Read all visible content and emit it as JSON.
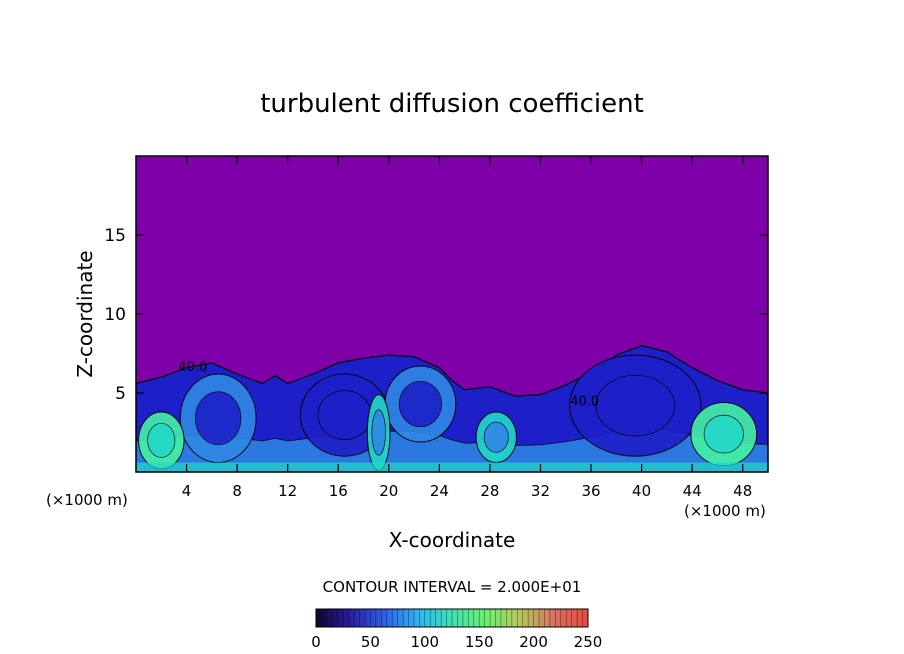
{
  "chart_data": {
    "type": "heatmap",
    "title": "turbulent diffusion coefficient",
    "xlabel": "X-coordinate",
    "ylabel": "Z-coordinate",
    "x_units": "(×1000 m)",
    "y_units": "(×1000 m)",
    "xlim": [
      0,
      50
    ],
    "ylim": [
      0,
      20
    ],
    "x_ticks": [
      4,
      8,
      12,
      16,
      20,
      24,
      28,
      32,
      36,
      40,
      44,
      48
    ],
    "y_ticks": [
      5,
      10,
      15
    ],
    "contour_interval_label": "CONTOUR INTERVAL = 2.000E+01",
    "contour_labels": [
      {
        "text": "40.0",
        "x": 4.5,
        "y": 6.4
      },
      {
        "text": "40.0",
        "x": 35.5,
        "y": 4.2
      }
    ],
    "colorbar": {
      "range": [
        0,
        250
      ],
      "tick_values": [
        0,
        50,
        100,
        150,
        200,
        250
      ]
    },
    "colors": {
      "background": "#7f00a8",
      "low": "#1d20c8",
      "mid": "#2f88e6",
      "high": "#22d8c8",
      "peak": "#44f2a6"
    },
    "boundary_profile": [
      [
        0,
        5.6
      ],
      [
        2,
        6.0
      ],
      [
        4,
        6.6
      ],
      [
        6,
        6.9
      ],
      [
        8,
        6.2
      ],
      [
        10,
        5.6
      ],
      [
        11,
        6.1
      ],
      [
        12,
        5.6
      ],
      [
        14,
        6.2
      ],
      [
        16,
        6.9
      ],
      [
        18,
        7.2
      ],
      [
        20,
        7.4
      ],
      [
        22,
        7.3
      ],
      [
        24,
        6.6
      ],
      [
        25,
        5.8
      ],
      [
        26,
        5.2
      ],
      [
        28,
        5.4
      ],
      [
        30,
        4.8
      ],
      [
        32,
        4.9
      ],
      [
        34,
        5.5
      ],
      [
        36,
        6.3
      ],
      [
        38,
        7.4
      ],
      [
        40,
        8.0
      ],
      [
        42,
        7.6
      ],
      [
        44,
        6.6
      ],
      [
        46,
        5.8
      ],
      [
        48,
        5.2
      ],
      [
        50,
        5.0
      ]
    ],
    "eddies": [
      {
        "x": 6.5,
        "z": 3.4,
        "rx": 3.0,
        "rz": 2.8,
        "value": 60
      },
      {
        "x": 2.0,
        "z": 2.0,
        "rx": 1.8,
        "rz": 1.8,
        "value": 140
      },
      {
        "x": 16.5,
        "z": 3.6,
        "rx": 3.5,
        "rz": 2.6,
        "value": 40
      },
      {
        "x": 22.5,
        "z": 4.3,
        "rx": 2.8,
        "rz": 2.4,
        "value": 60
      },
      {
        "x": 19.2,
        "z": 2.5,
        "rx": 0.9,
        "rz": 2.4,
        "value": 120
      },
      {
        "x": 28.5,
        "z": 2.2,
        "rx": 1.6,
        "rz": 1.6,
        "value": 120
      },
      {
        "x": 39.5,
        "z": 4.2,
        "rx": 5.2,
        "rz": 3.2,
        "value": 40
      },
      {
        "x": 46.5,
        "z": 2.4,
        "rx": 2.6,
        "rz": 2.0,
        "value": 150
      }
    ]
  }
}
